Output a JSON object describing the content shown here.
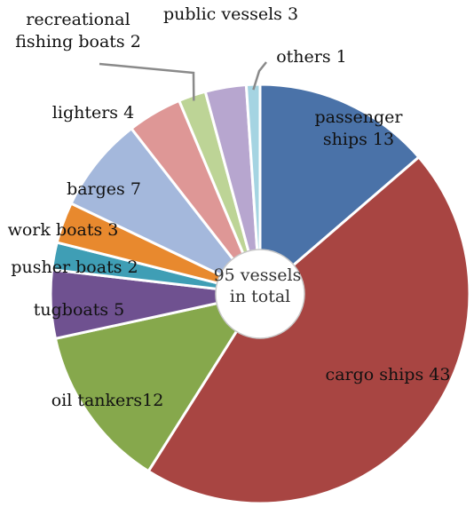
{
  "chart_data": {
    "type": "pie",
    "donut": true,
    "center_text": [
      "95 vessels",
      "in total"
    ],
    "start": "12 o'clock, clockwise",
    "legend": "none",
    "slices": [
      {
        "name": "passenger ships",
        "value": 13,
        "label": [
          "passenger",
          "ships 13"
        ],
        "color": "#4a72a8"
      },
      {
        "name": "cargo ships",
        "value": 43,
        "label": [
          "cargo ships 43"
        ],
        "color": "#a84542"
      },
      {
        "name": "oil tankers",
        "value": 12,
        "label": [
          "oil tankers12"
        ],
        "color": "#86a84c"
      },
      {
        "name": "tugboats",
        "value": 5,
        "label": [
          "tugboats 5"
        ],
        "color": "#6f5190"
      },
      {
        "name": "pusher boats",
        "value": 2,
        "label": [
          "pusher boats 2"
        ],
        "color": "#3f9eb5"
      },
      {
        "name": "work boats",
        "value": 3,
        "label": [
          "work boats 3"
        ],
        "color": "#e8892e"
      },
      {
        "name": "barges",
        "value": 7,
        "label": [
          "barges 7"
        ],
        "color": "#a4b8dc"
      },
      {
        "name": "lighters",
        "value": 4,
        "label": [
          "lighters 4"
        ],
        "color": "#de9796"
      },
      {
        "name": "recreational fishing boats",
        "value": 2,
        "label": [
          "recreational",
          "fishing boats 2"
        ],
        "color": "#bdd496"
      },
      {
        "name": "public vessels",
        "value": 3,
        "label": [
          "public vessels 3"
        ],
        "color": "#b7a6cf"
      },
      {
        "name": "others",
        "value": 1,
        "label": [
          "others 1"
        ],
        "color": "#a5d4e2"
      }
    ]
  }
}
